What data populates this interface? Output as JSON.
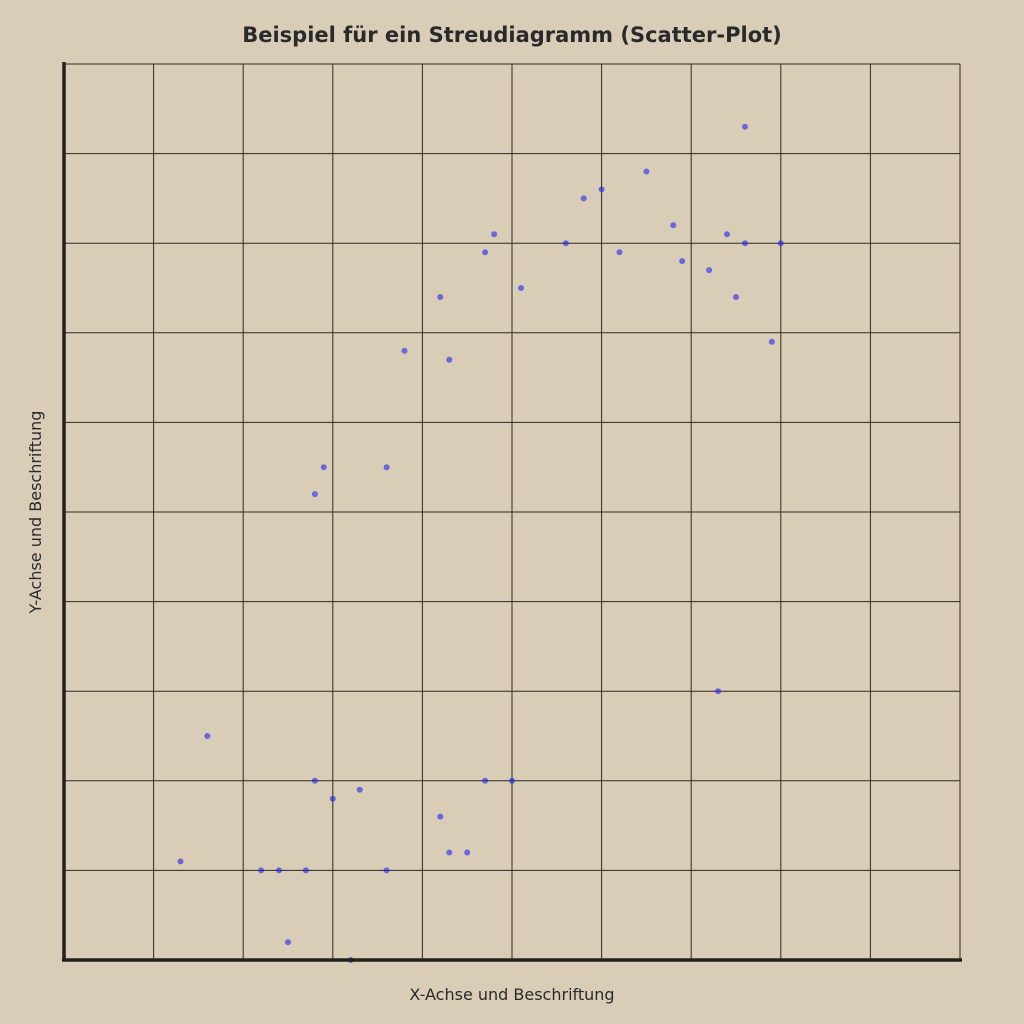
{
  "chart_data": {
    "type": "scatter",
    "title": "Beispiel für ein Streudiagramm (Scatter-Plot)",
    "xlabel": "X-Achse und Beschriftung",
    "ylabel": "Y-Achse und Beschriftung",
    "xlim": [
      0,
      10
    ],
    "ylim": [
      0,
      10
    ],
    "xticks_count": 10,
    "yticks_count": 10,
    "grid": true,
    "tick_labels": "none",
    "point_color": "#2222ee",
    "background": "#d9cdb8",
    "series": [
      {
        "points": [
          [
            7.6,
            9.3
          ],
          [
            6.5,
            8.8
          ],
          [
            6.0,
            8.6
          ],
          [
            5.8,
            8.5
          ],
          [
            6.8,
            8.2
          ],
          [
            7.4,
            8.1
          ],
          [
            7.6,
            8.0
          ],
          [
            8.0,
            8.0
          ],
          [
            4.8,
            8.1
          ],
          [
            4.7,
            7.9
          ],
          [
            5.6,
            8.0
          ],
          [
            6.2,
            7.9
          ],
          [
            6.9,
            7.8
          ],
          [
            7.2,
            7.7
          ],
          [
            5.1,
            7.5
          ],
          [
            4.2,
            7.4
          ],
          [
            7.5,
            7.4
          ],
          [
            7.9,
            6.9
          ],
          [
            3.8,
            6.8
          ],
          [
            4.3,
            6.7
          ],
          [
            2.9,
            5.5
          ],
          [
            2.8,
            5.2
          ],
          [
            3.6,
            5.5
          ],
          [
            1.6,
            2.5
          ],
          [
            1.3,
            1.1
          ],
          [
            2.2,
            1.0
          ],
          [
            2.4,
            1.0
          ],
          [
            2.7,
            1.0
          ],
          [
            2.5,
            0.2
          ],
          [
            3.2,
            0.0
          ],
          [
            4.2,
            1.6
          ],
          [
            4.3,
            1.2
          ],
          [
            4.5,
            1.2
          ],
          [
            3.6,
            1.0
          ],
          [
            4.7,
            2.0
          ],
          [
            5.0,
            2.0
          ],
          [
            3.3,
            1.9
          ],
          [
            2.8,
            2.0
          ],
          [
            3.0,
            1.8
          ],
          [
            7.3,
            3.0
          ]
        ]
      }
    ]
  }
}
